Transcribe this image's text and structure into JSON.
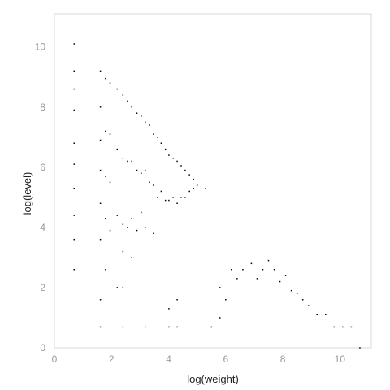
{
  "chart_data": {
    "type": "scatter",
    "title": "",
    "xlabel": "log(weight)",
    "ylabel": "log(level)",
    "xlim": [
      0,
      11.1
    ],
    "ylim": [
      0,
      11.1
    ],
    "x_ticks": [
      "0",
      "2",
      "4",
      "6",
      "8",
      "10"
    ],
    "y_ticks": [
      "0",
      "2",
      "4",
      "6",
      "8",
      "10"
    ],
    "grid": false,
    "legend": "none",
    "point_color": "#000000",
    "frame_color": "#d9d9d9",
    "series": [
      {
        "points": [
          [
            0.69,
            10.1
          ],
          [
            0.69,
            9.2
          ],
          [
            0.69,
            8.6
          ],
          [
            0.69,
            7.9
          ],
          [
            0.69,
            6.8
          ],
          [
            0.69,
            6.1
          ],
          [
            0.69,
            5.3
          ],
          [
            0.69,
            4.4
          ],
          [
            0.69,
            3.6
          ],
          [
            0.69,
            2.6
          ],
          [
            1.61,
            9.2
          ],
          [
            1.61,
            8.0
          ],
          [
            1.61,
            6.9
          ],
          [
            1.61,
            5.9
          ],
          [
            1.61,
            4.8
          ],
          [
            1.61,
            3.6
          ],
          [
            1.61,
            1.6
          ],
          [
            1.61,
            0.69
          ],
          [
            1.79,
            8.95
          ],
          [
            1.79,
            7.2
          ],
          [
            1.79,
            5.7
          ],
          [
            1.79,
            4.3
          ],
          [
            1.79,
            2.6
          ],
          [
            1.95,
            8.8
          ],
          [
            1.95,
            7.1
          ],
          [
            1.95,
            5.5
          ],
          [
            1.95,
            3.9
          ],
          [
            2.2,
            8.6
          ],
          [
            2.2,
            6.6
          ],
          [
            2.2,
            4.4
          ],
          [
            2.2,
            2.0
          ],
          [
            2.4,
            8.4
          ],
          [
            2.4,
            6.3
          ],
          [
            2.4,
            4.1
          ],
          [
            2.4,
            3.2
          ],
          [
            2.4,
            2.0
          ],
          [
            2.4,
            0.69
          ],
          [
            2.56,
            8.2
          ],
          [
            2.56,
            6.2
          ],
          [
            2.56,
            4.0
          ],
          [
            2.71,
            8.0
          ],
          [
            2.71,
            6.2
          ],
          [
            2.71,
            4.3
          ],
          [
            2.71,
            3.0
          ],
          [
            2.89,
            7.8
          ],
          [
            2.89,
            5.9
          ],
          [
            2.89,
            3.9
          ],
          [
            3.04,
            7.7
          ],
          [
            3.04,
            5.8
          ],
          [
            3.04,
            4.5
          ],
          [
            3.18,
            7.5
          ],
          [
            3.18,
            5.9
          ],
          [
            3.18,
            4.0
          ],
          [
            3.18,
            0.69
          ],
          [
            3.33,
            7.4
          ],
          [
            3.33,
            5.5
          ],
          [
            3.47,
            7.1
          ],
          [
            3.47,
            5.4
          ],
          [
            3.47,
            3.8
          ],
          [
            3.61,
            7.0
          ],
          [
            3.61,
            5.0
          ],
          [
            3.74,
            6.8
          ],
          [
            3.74,
            5.2
          ],
          [
            3.89,
            6.6
          ],
          [
            3.89,
            4.9
          ],
          [
            4.01,
            6.4
          ],
          [
            4.01,
            4.9
          ],
          [
            4.01,
            1.3
          ],
          [
            4.01,
            0.69
          ],
          [
            4.16,
            6.3
          ],
          [
            4.16,
            5.0
          ],
          [
            4.3,
            6.2
          ],
          [
            4.3,
            4.8
          ],
          [
            4.3,
            1.6
          ],
          [
            4.3,
            0.69
          ],
          [
            4.44,
            6.05
          ],
          [
            4.44,
            5.0
          ],
          [
            4.58,
            5.9
          ],
          [
            4.58,
            5.0
          ],
          [
            4.73,
            5.75
          ],
          [
            4.73,
            5.2
          ],
          [
            4.87,
            5.6
          ],
          [
            4.87,
            5.3
          ],
          [
            5.0,
            5.4
          ],
          [
            5.3,
            5.3
          ],
          [
            5.5,
            0.69
          ],
          [
            5.8,
            1.0
          ],
          [
            5.8,
            2.0
          ],
          [
            6.0,
            1.6
          ],
          [
            6.2,
            2.6
          ],
          [
            6.4,
            2.3
          ],
          [
            6.6,
            2.6
          ],
          [
            6.9,
            2.8
          ],
          [
            7.1,
            2.3
          ],
          [
            7.3,
            2.6
          ],
          [
            7.5,
            2.9
          ],
          [
            7.7,
            2.6
          ],
          [
            7.9,
            2.2
          ],
          [
            8.1,
            2.4
          ],
          [
            8.3,
            1.9
          ],
          [
            8.5,
            1.8
          ],
          [
            8.7,
            1.6
          ],
          [
            8.9,
            1.4
          ],
          [
            9.2,
            1.1
          ],
          [
            9.5,
            1.1
          ],
          [
            9.8,
            0.69
          ],
          [
            10.1,
            0.69
          ],
          [
            10.4,
            0.69
          ],
          [
            10.7,
            0.0
          ]
        ]
      }
    ]
  }
}
